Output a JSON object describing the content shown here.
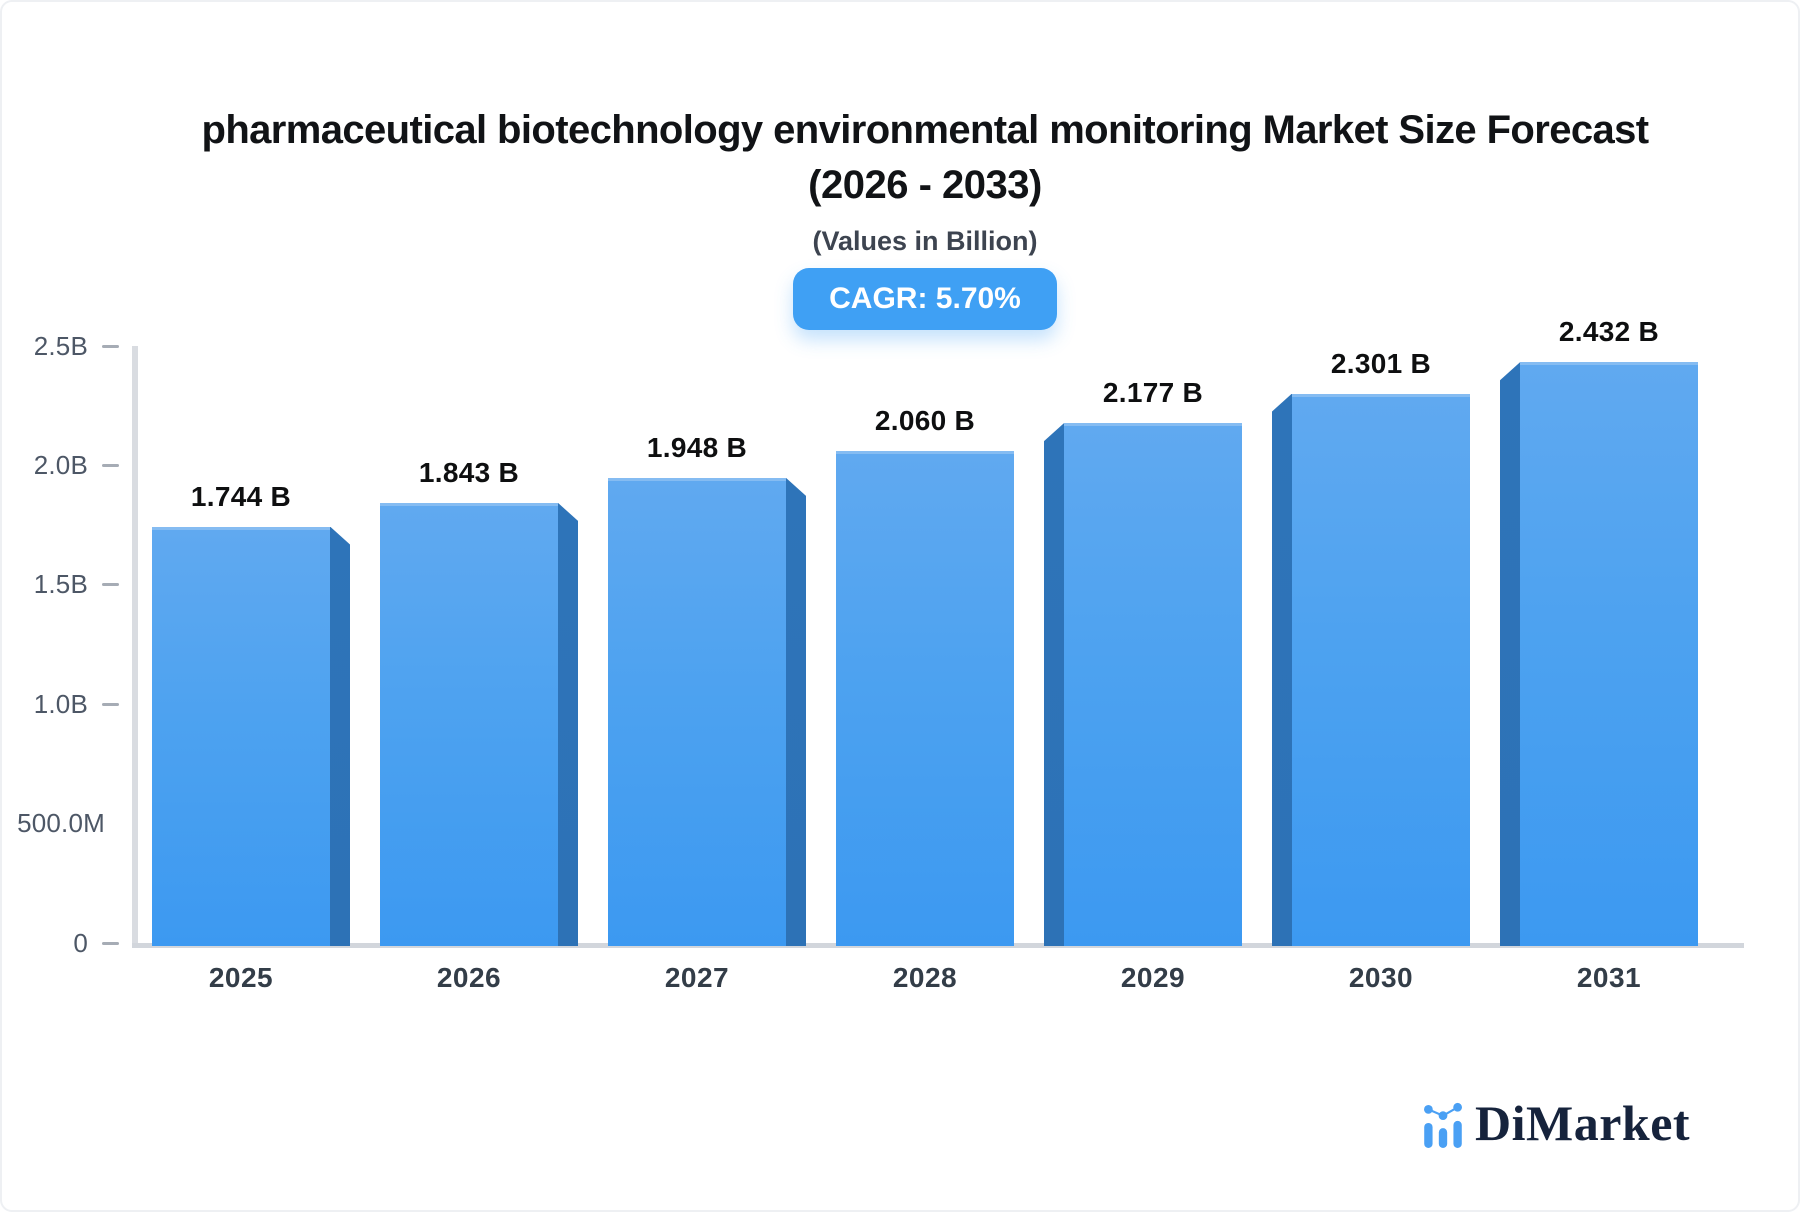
{
  "chart_data": {
    "type": "bar",
    "title_line1": "pharmaceutical biotechnology environmental monitoring Market Size Forecast",
    "title_line2": "(2026 - 2033)",
    "subtitle": "(Values in Billion)",
    "badge": "CAGR: 5.70%",
    "categories": [
      "2025",
      "2026",
      "2027",
      "2028",
      "2029",
      "2030",
      "2031"
    ],
    "values": [
      1.744,
      1.843,
      1.948,
      2.06,
      2.177,
      2.301,
      2.432
    ],
    "bar_labels": [
      "1.744 B",
      "1.843 B",
      "1.948 B",
      "2.060 B",
      "2.177 B",
      "2.301 B",
      "2.432 B"
    ],
    "unit": "Billion",
    "ylabel": "",
    "xlabel": "",
    "ylim": [
      0,
      2.5
    ],
    "grid": false,
    "legend": "none",
    "y_ticks": [
      {
        "label": "2.5B",
        "value": 2.5,
        "dash": true
      },
      {
        "label": "2.0B",
        "value": 2.0,
        "dash": true
      },
      {
        "label": "1.5B",
        "value": 1.5,
        "dash": true
      },
      {
        "label": "1.0B",
        "value": 1.0,
        "dash": true
      },
      {
        "label": "500.0M",
        "value": 0.5,
        "dash": false
      },
      {
        "label": "0",
        "value": 0.0,
        "dash": true
      }
    ],
    "colors": {
      "bar_top": "#60a9f0",
      "bar_bottom": "#3c99f1",
      "bar_side": "#2e74b9",
      "badge_bg": "#3fa0f4",
      "axis_line": "#d9dce1",
      "tick_text": "#4d5766",
      "year_text": "#333d48",
      "value_text": "#0e0f10"
    }
  },
  "watermark": {
    "brand": "DiMarket"
  }
}
